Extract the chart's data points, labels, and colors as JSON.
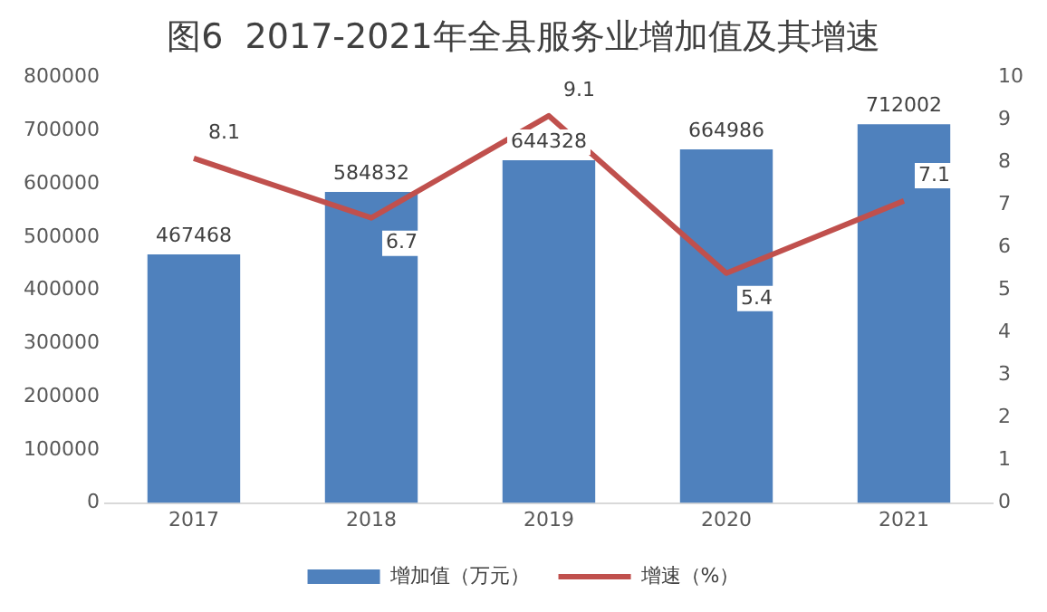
{
  "chart_data": {
    "type": "bar",
    "title": "图6  2017-2021年全县服务业增加值及其增速",
    "categories": [
      "2017",
      "2018",
      "2019",
      "2020",
      "2021"
    ],
    "series": [
      {
        "name": "增加值（万元）",
        "color": "#4f81bd",
        "values": [
          467468,
          584832,
          644328,
          664986,
          712002
        ]
      },
      {
        "name": "增速（%）",
        "type": "line",
        "axis": "y2",
        "color": "#c0504d",
        "values": [
          8.1,
          6.7,
          9.1,
          5.4,
          7.1
        ]
      }
    ],
    "ylim": [
      0,
      800000
    ],
    "yticks": [
      0,
      100000,
      200000,
      300000,
      400000,
      500000,
      600000,
      700000,
      800000
    ],
    "y2lim": [
      0,
      10
    ],
    "y2ticks": [
      0,
      1,
      2,
      3,
      4,
      5,
      6,
      7,
      8,
      9,
      10
    ],
    "data_labels": true,
    "legend": "bottom",
    "grid": false,
    "marker": "none",
    "line_style": "solid"
  }
}
